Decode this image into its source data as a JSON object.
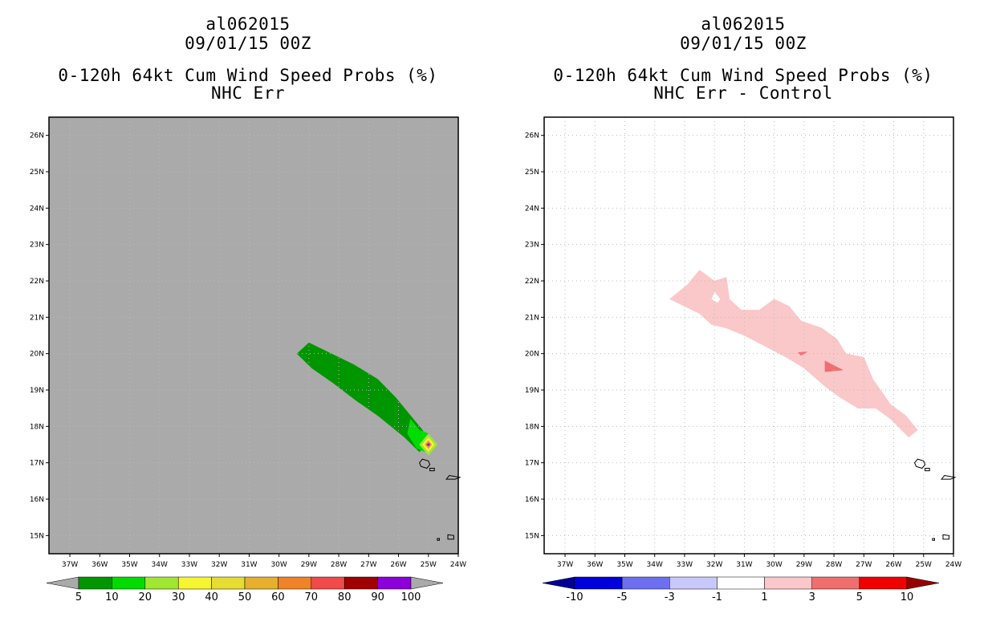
{
  "chart_data": [
    {
      "type": "map-contour",
      "title_lines": [
        "al062015",
        "09/01/15 00Z",
        "0-120h 64kt Cum Wind Speed Probs (%)",
        "NHC Err"
      ],
      "xaxis": {
        "label": "",
        "lon_range": [
          -37.7,
          -24.0
        ],
        "ticks": [
          -37,
          -36,
          -35,
          -34,
          -33,
          -32,
          -31,
          -30,
          -29,
          -28,
          -27,
          -26,
          -25,
          -24
        ],
        "tick_labels": [
          "37W",
          "36W",
          "35W",
          "34W",
          "33W",
          "32W",
          "31W",
          "30W",
          "29W",
          "28W",
          "27W",
          "26W",
          "25W",
          "24W"
        ]
      },
      "yaxis": {
        "label": "",
        "lat_range": [
          14.5,
          26.5
        ],
        "ticks": [
          15,
          16,
          17,
          18,
          19,
          20,
          21,
          22,
          23,
          24,
          25,
          26
        ],
        "tick_labels": [
          "15N",
          "16N",
          "17N",
          "18N",
          "19N",
          "20N",
          "21N",
          "22N",
          "23N",
          "24N",
          "25N",
          "26N"
        ]
      },
      "background": "#aaaaaa",
      "colorbar": {
        "levels": [
          "5",
          "10",
          "20",
          "30",
          "40",
          "50",
          "60",
          "70",
          "80",
          "90",
          "100"
        ],
        "colors": [
          "#009600",
          "#00dc00",
          "#a0e632",
          "#f5f532",
          "#e6dc32",
          "#e6af2d",
          "#f08228",
          "#f04a4a",
          "#a00000",
          "#8c00dc"
        ],
        "end_color": "#aaaaaa"
      },
      "regions": [
        {
          "level": "5-10",
          "color": "#009600",
          "lonlat": [
            [
              -29.4,
              20.0
            ],
            [
              -29.0,
              20.3
            ],
            [
              -27.5,
              19.7
            ],
            [
              -26.7,
              19.3
            ],
            [
              -26.1,
              18.8
            ],
            [
              -25.7,
              18.4
            ],
            [
              -25.2,
              17.9
            ],
            [
              -25.0,
              17.6
            ],
            [
              -25.3,
              17.3
            ],
            [
              -25.8,
              17.7
            ],
            [
              -26.7,
              18.3
            ],
            [
              -27.4,
              18.7
            ],
            [
              -28.2,
              19.2
            ],
            [
              -28.9,
              19.6
            ]
          ]
        },
        {
          "level": "10-20",
          "color": "#00dc00",
          "lonlat": [
            [
              -25.6,
              18.2
            ],
            [
              -25.3,
              17.9
            ],
            [
              -25.0,
              17.8
            ],
            [
              -24.9,
              17.5
            ],
            [
              -25.1,
              17.3
            ],
            [
              -25.4,
              17.4
            ],
            [
              -25.7,
              17.8
            ]
          ]
        },
        {
          "level": "20-30",
          "color": "#a0e632",
          "lonlat": [
            [
              -25.0,
              17.8
            ],
            [
              -24.7,
              17.5
            ],
            [
              -25.0,
              17.2
            ],
            [
              -25.3,
              17.5
            ]
          ]
        },
        {
          "level": "30-40",
          "color": "#f5f532",
          "lonlat": [
            [
              -25.0,
              17.7
            ],
            [
              -24.8,
              17.5
            ],
            [
              -25.0,
              17.3
            ],
            [
              -25.2,
              17.5
            ]
          ]
        },
        {
          "level": "50-60",
          "color": "#e6af2d",
          "lonlat": [
            [
              -25.0,
              17.62
            ],
            [
              -24.88,
              17.5
            ],
            [
              -25.0,
              17.38
            ],
            [
              -25.12,
              17.5
            ]
          ]
        },
        {
          "level": "70-80",
          "color": "#f04a4a",
          "lonlat": [
            [
              -25.0,
              17.57
            ],
            [
              -24.93,
              17.5
            ],
            [
              -25.0,
              17.43
            ],
            [
              -25.07,
              17.5
            ]
          ]
        },
        {
          "level": "90-100",
          "color": "#8c00dc",
          "lonlat": [
            [
              -25.0,
              17.53
            ],
            [
              -24.97,
              17.5
            ],
            [
              -25.0,
              17.47
            ],
            [
              -25.03,
              17.5
            ]
          ]
        }
      ]
    },
    {
      "type": "map-contour",
      "title_lines": [
        "al062015",
        "09/01/15 00Z",
        "0-120h 64kt Cum Wind Speed Probs (%)",
        "NHC Err - Control"
      ],
      "xaxis": {
        "label": "",
        "lon_range": [
          -37.7,
          -24.0
        ],
        "ticks": [
          -37,
          -36,
          -35,
          -34,
          -33,
          -32,
          -31,
          -30,
          -29,
          -28,
          -27,
          -26,
          -25,
          -24
        ],
        "tick_labels": [
          "37W",
          "36W",
          "35W",
          "34W",
          "33W",
          "32W",
          "31W",
          "30W",
          "29W",
          "28W",
          "27W",
          "26W",
          "25W",
          "24W"
        ]
      },
      "yaxis": {
        "label": "",
        "lat_range": [
          14.5,
          26.5
        ],
        "ticks": [
          15,
          16,
          17,
          18,
          19,
          20,
          21,
          22,
          23,
          24,
          25,
          26
        ],
        "tick_labels": [
          "15N",
          "16N",
          "17N",
          "18N",
          "19N",
          "20N",
          "21N",
          "22N",
          "23N",
          "24N",
          "25N",
          "26N"
        ]
      },
      "background": "#ffffff",
      "colorbar": {
        "levels": [
          "-10",
          "-5",
          "-3",
          "-1",
          "1",
          "3",
          "5",
          "10"
        ],
        "colors": [
          "#0000dc",
          "#6e6ef0",
          "#c8c8fa",
          "#ffffff",
          "#fac8c8",
          "#f06e6e",
          "#f00000"
        ],
        "end_left_color": "#000096",
        "end_right_color": "#960000"
      },
      "regions": [
        {
          "level": "1-3",
          "color": "#fac8c8",
          "lonlat": [
            [
              -33.5,
              21.5
            ],
            [
              -32.9,
              21.9
            ],
            [
              -32.5,
              22.3
            ],
            [
              -32.0,
              22.0
            ],
            [
              -31.6,
              22.1
            ],
            [
              -31.5,
              21.5
            ],
            [
              -31.1,
              21.2
            ],
            [
              -30.5,
              21.2
            ],
            [
              -30.0,
              21.5
            ],
            [
              -29.5,
              21.3
            ],
            [
              -29.1,
              20.9
            ],
            [
              -28.4,
              20.7
            ],
            [
              -27.9,
              20.4
            ],
            [
              -27.6,
              20.0
            ],
            [
              -27.0,
              19.9
            ],
            [
              -26.7,
              19.3
            ],
            [
              -26.1,
              18.6
            ],
            [
              -25.6,
              18.3
            ],
            [
              -25.2,
              17.9
            ],
            [
              -25.5,
              17.7
            ],
            [
              -26.1,
              18.2
            ],
            [
              -26.6,
              18.5
            ],
            [
              -27.2,
              18.5
            ],
            [
              -27.8,
              18.8
            ],
            [
              -28.3,
              19.1
            ],
            [
              -29.0,
              19.6
            ],
            [
              -29.6,
              19.9
            ],
            [
              -30.3,
              20.2
            ],
            [
              -31.0,
              20.5
            ],
            [
              -31.6,
              20.7
            ],
            [
              -32.1,
              20.8
            ],
            [
              -32.5,
              21.1
            ],
            [
              -33.0,
              21.3
            ]
          ]
        },
        {
          "level": "3-5",
          "color": "#f06e6e",
          "lonlat": [
            [
              -28.3,
              19.8
            ],
            [
              -27.7,
              19.55
            ],
            [
              -28.3,
              19.5
            ]
          ]
        },
        {
          "level": "3-5",
          "color": "#f06e6e",
          "lonlat": [
            [
              -29.2,
              20.03
            ],
            [
              -28.9,
              20.05
            ],
            [
              -29.1,
              19.95
            ]
          ]
        }
      ],
      "holes": [
        {
          "color": "#ffffff",
          "lonlat": [
            [
              -32.0,
              21.7
            ],
            [
              -31.8,
              21.5
            ],
            [
              -31.9,
              21.4
            ],
            [
              -32.1,
              21.5
            ]
          ]
        }
      ]
    }
  ]
}
